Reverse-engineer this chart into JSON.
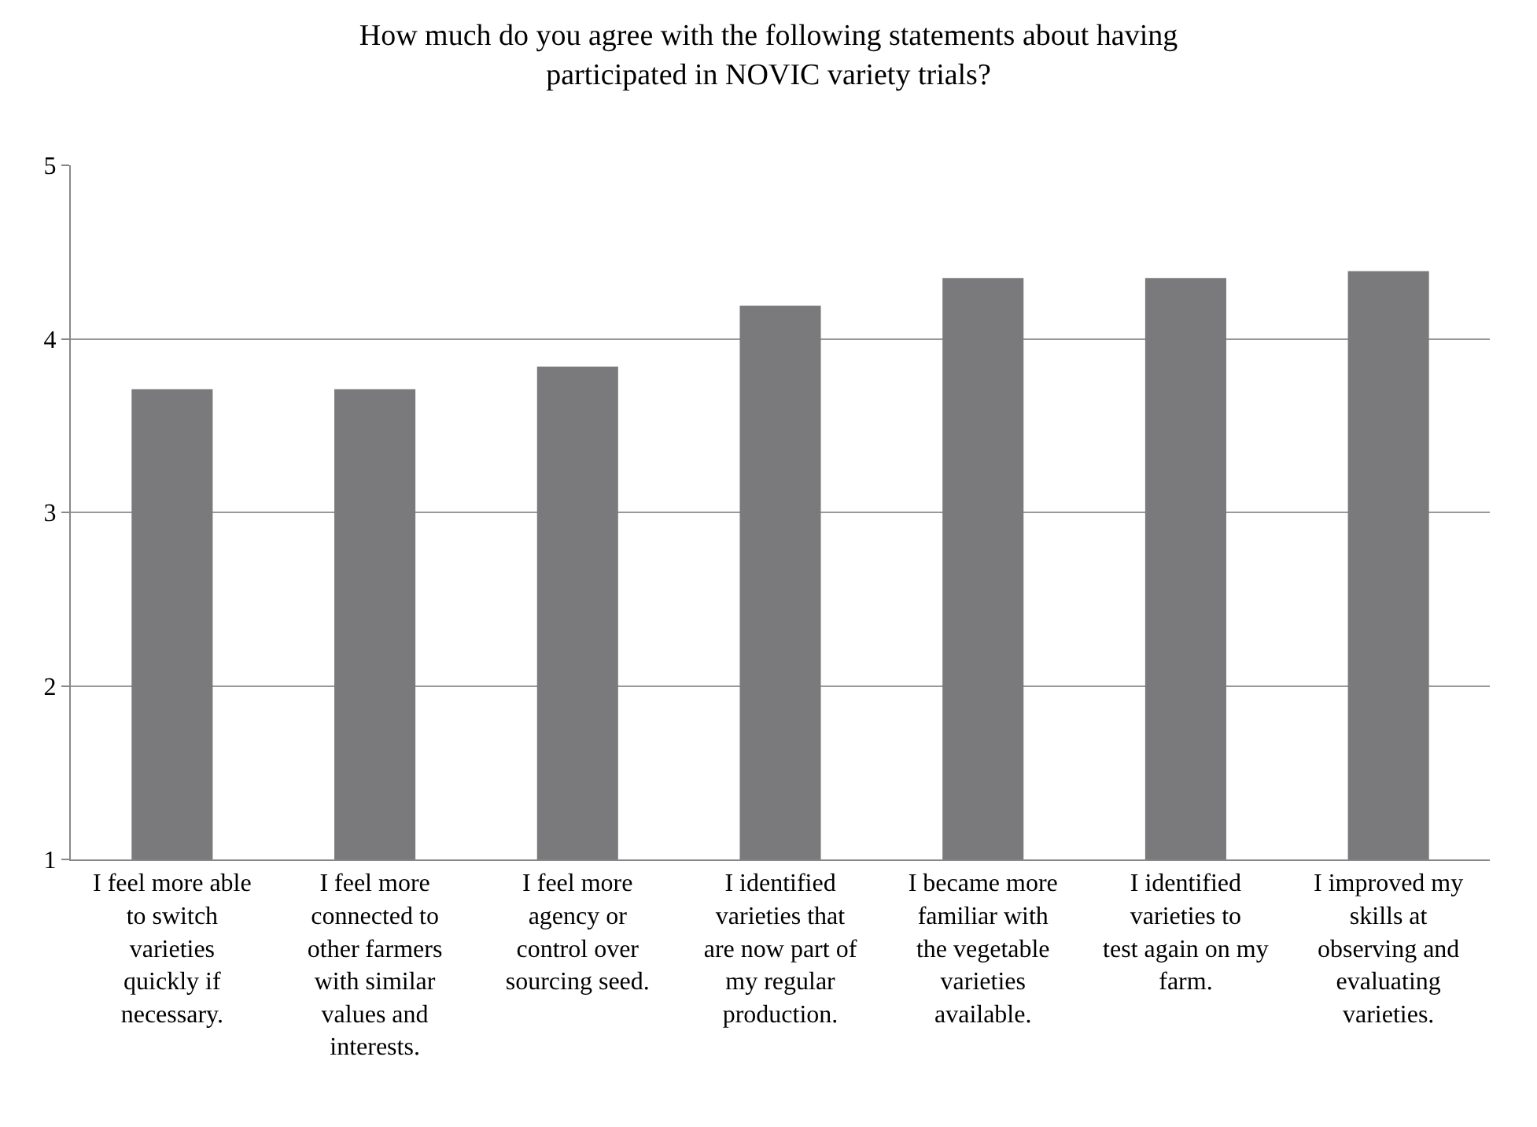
{
  "chart_data": {
    "type": "bar",
    "title": "How much do you agree with the following statements about having participated in NOVIC variety trials?",
    "categories": [
      "I feel more able to switch varieties quickly if necessary.",
      "I feel more connected to other farmers with similar values and interests.",
      "I feel more agency or control over sourcing seed.",
      "I identified varieties that are now part of my regular production.",
      "I became more familiar with the vegetable varieties available.",
      "I identified varieties to test again on my farm.",
      "I improved my skills at observing and evaluating varieties."
    ],
    "values": [
      3.71,
      3.71,
      3.84,
      4.19,
      4.35,
      4.35,
      4.39
    ],
    "color": "#7a7a7d",
    "ylim": [
      1,
      5
    ],
    "yticks": [
      1,
      2,
      3,
      4,
      5
    ],
    "grid": "y"
  }
}
